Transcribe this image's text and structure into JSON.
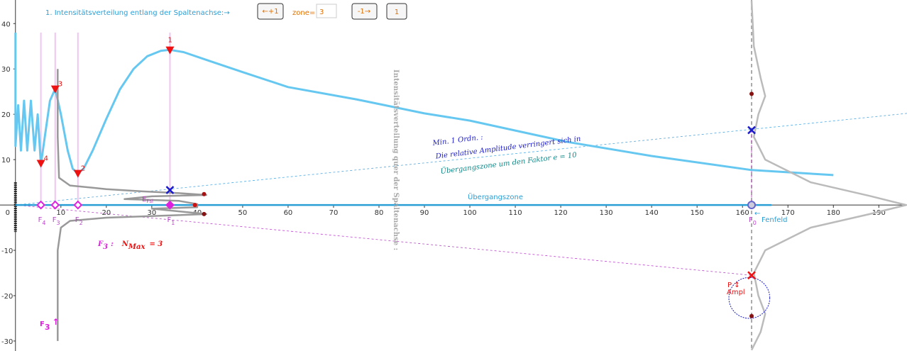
{
  "chart_data": {
    "type": "line",
    "xlim": [
      -3.4,
      196.2
    ],
    "ylim": [
      -32.2,
      45.2
    ],
    "xticks": [
      0,
      10,
      20,
      30,
      40,
      50,
      60,
      70,
      80,
      90,
      100,
      110,
      120,
      130,
      140,
      150,
      160,
      170,
      180,
      190
    ],
    "yticks": [
      -30,
      -20,
      -10,
      10,
      20,
      30,
      40
    ],
    "grid": false,
    "series": [
      {
        "color": "#66c8f0",
        "x": [
          0,
          0,
          0.6,
          1.2,
          1.9,
          2.6,
          3.4,
          4.2,
          4.9,
          5.6,
          6.6,
          7.6,
          8.75,
          10,
          11.5,
          12.6,
          13.75,
          15,
          17,
          20,
          23,
          26,
          29,
          32,
          34,
          37,
          42,
          50,
          60,
          75,
          90,
          100,
          121.5,
          140,
          162,
          180
        ],
        "values": [
          38,
          13,
          22,
          12,
          23,
          12,
          23,
          12,
          20,
          8.9,
          16,
          23,
          25.6,
          20,
          12,
          8,
          6.9,
          8,
          12,
          19,
          25.5,
          30,
          32.8,
          34,
          34.2,
          33.7,
          32,
          29.3,
          26,
          23.3,
          20.2,
          18.6,
          13.9,
          10.8,
          7.7,
          6.6
        ]
      },
      {
        "color": "#999999",
        "x": [
          9.3,
          9.3,
          9.6,
          12,
          20,
          28,
          36,
          42,
          30,
          24,
          36,
          40,
          40,
          30,
          42,
          20,
          12,
          10,
          9.3,
          9.3
        ],
        "values": [
          30,
          15,
          6,
          4.3,
          3.5,
          3,
          2.6,
          2.2,
          1.9,
          1.3,
          0.9,
          0.2,
          -0.5,
          -0.8,
          -2,
          -2.8,
          -3.5,
          -5,
          -10,
          -30
        ]
      },
      {
        "color": "#bbbbbb",
        "x": [
          162,
          162.5,
          164,
          165,
          163.5,
          162.5,
          165,
          175,
          188,
          196,
          188,
          175,
          165,
          162.5,
          163.5,
          165,
          164,
          162.5,
          162
        ],
        "values": [
          45,
          35,
          28,
          24,
          20,
          15,
          10,
          5,
          2,
          0,
          -2,
          -5,
          -10,
          -15,
          -20,
          -24,
          -28,
          -31,
          -32
        ]
      }
    ],
    "markers": [
      {
        "shape": "triangle",
        "color": "#ee1111",
        "x": 34,
        "y": 34,
        "label": "1"
      },
      {
        "shape": "triangle",
        "color": "#ee1111",
        "x": 13.75,
        "y": 6.8,
        "label": "2"
      },
      {
        "shape": "triangle",
        "color": "#ee1111",
        "x": 8.75,
        "y": 25.4,
        "label": "3"
      },
      {
        "shape": "triangle",
        "color": "#ee1111",
        "x": 5.6,
        "y": 9,
        "label": "4"
      },
      {
        "shape": "diamond",
        "color": "#dd22dd",
        "x": 5.6,
        "y": 0,
        "label": "F",
        "sub": "4"
      },
      {
        "shape": "diamond",
        "color": "#dd22dd",
        "x": 8.75,
        "y": 0,
        "label": "F",
        "sub": "3"
      },
      {
        "shape": "diamond",
        "color": "#dd22dd",
        "x": 13.75,
        "y": 0,
        "label": "F",
        "sub": "2"
      },
      {
        "shape": "diamond-filled",
        "color": "#dd22dd",
        "x": 34,
        "y": 0,
        "label": "F",
        "sub": "1"
      },
      {
        "shape": "ring",
        "color": "#6666cc",
        "x": 162,
        "y": 0,
        "label": "F",
        "sub": "0"
      },
      {
        "shape": "cross",
        "color": "#1a1acc",
        "x": 34,
        "y": 3.3
      },
      {
        "shape": "cross",
        "color": "#1a1acc",
        "x": 162,
        "y": 16.5
      },
      {
        "shape": "cross",
        "color": "#ee1111",
        "x": 162,
        "y": -15.5
      },
      {
        "shape": "dot",
        "color": "#aa1111",
        "x": 41.5,
        "y": 2.4
      },
      {
        "shape": "dot",
        "color": "#881111",
        "x": 41.5,
        "y": -2
      },
      {
        "shape": "dot",
        "color": "#cc1111",
        "x": 39.5,
        "y": 0
      },
      {
        "shape": "dot",
        "color": "#881111",
        "x": 162,
        "y": 24.5
      },
      {
        "shape": "dot",
        "color": "#881111",
        "x": 162,
        "y": -24.5
      }
    ],
    "circle": {
      "x": 161.5,
      "y": -20.5,
      "r": 4.5
    },
    "toolbar": {
      "title": "1. Intensitätsverteilung entlang der Spaltenachse:→",
      "next": "←+1",
      "zone_label": "zone=",
      "zone_value": "3",
      "prev": "-1→",
      "step": "1"
    },
    "annotations": {
      "vertical": "Intensitätsverteilung quer der Spaltenachse :",
      "min_order": "Min. 1 Ordn. :",
      "amplitude": "Die relative Amplitude verringert sich  in",
      "factor": "Übergangszone um den Faktor e = 10",
      "transition": "Übergangszone",
      "farfield": "Fenfeld",
      "fsl": "E",
      "fsl_sub": "Fsl",
      "nmax_f": "F",
      "nmax_f_sub": "3",
      "nmax_colon": ":",
      "nmax_n": "N",
      "nmax_n_sub": "Max",
      "nmax_eq": "= 3",
      "f3_arrow": "F",
      "f3_arrow_sub": "3",
      "f3_arrow_tail": "↑",
      "p": "P ↕",
      "ampl": "Ampl"
    }
  }
}
